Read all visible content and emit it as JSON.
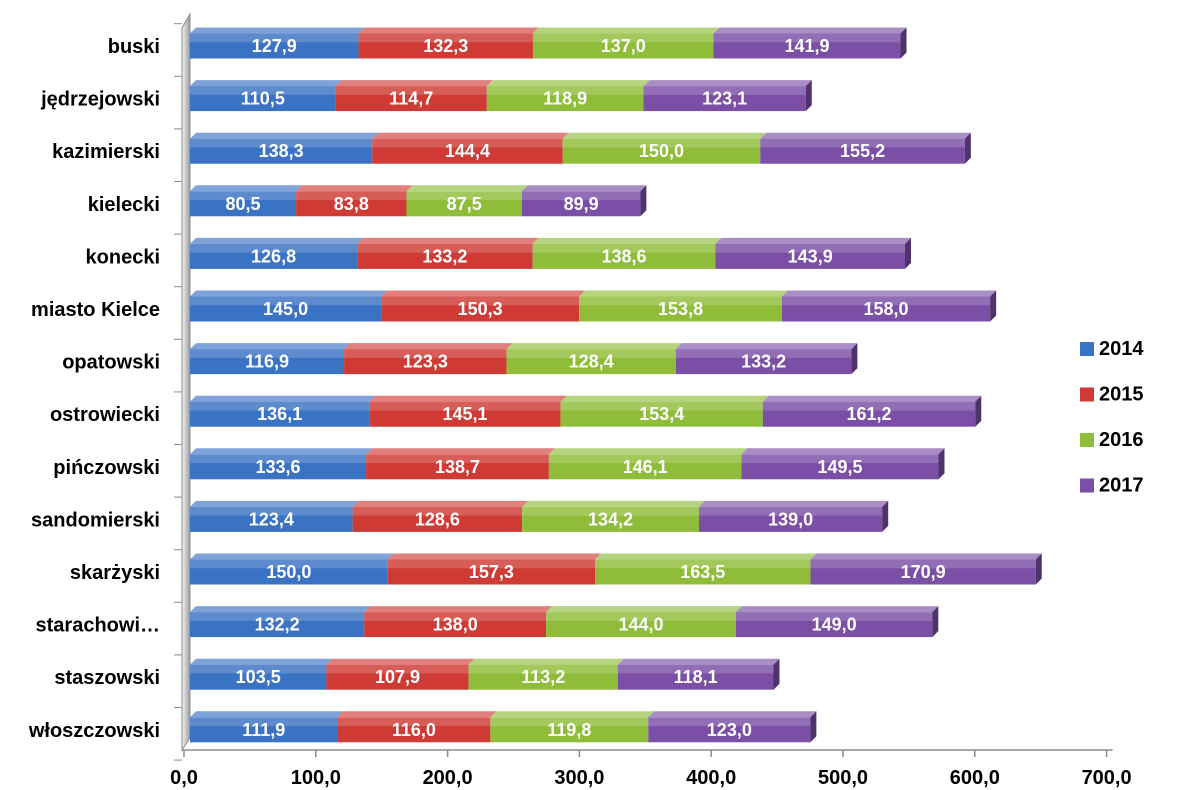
{
  "chart_data": {
    "type": "bar",
    "orientation": "horizontal",
    "stacked": true,
    "categories": [
      "buski",
      "jędrzejowski",
      "kazimierski",
      "kielecki",
      "konecki",
      "miasto Kielce",
      "opatowski",
      "ostrowiecki",
      "pińczowski",
      "sandomierski",
      "skarżyski",
      "starachowi…",
      "staszowski",
      "włoszczowski"
    ],
    "series": [
      {
        "name": "2014",
        "color": "#3a72c4",
        "values": [
          127.9,
          110.5,
          138.3,
          80.5,
          126.8,
          145.0,
          116.9,
          136.1,
          133.6,
          123.4,
          150.0,
          132.2,
          103.5,
          111.9
        ],
        "labels": [
          "127,9",
          "110,5",
          "138,3",
          "80,5",
          "126,8",
          "145,0",
          "116,9",
          "136,1",
          "133,6",
          "123,4",
          "150,0",
          "132,2",
          "103,5",
          "111,9"
        ]
      },
      {
        "name": "2015",
        "color": "#cf3a35",
        "values": [
          132.3,
          114.7,
          144.4,
          83.8,
          133.2,
          150.3,
          123.3,
          145.1,
          138.7,
          128.6,
          157.3,
          138.0,
          107.9,
          116.0
        ],
        "labels": [
          "132,3",
          "114,7",
          "144,4",
          "83,8",
          "133,2",
          "150,3",
          "123,3",
          "145,1",
          "138,7",
          "128,6",
          "157,3",
          "138,0",
          "107,9",
          "116,0"
        ]
      },
      {
        "name": "2016",
        "color": "#8fbd3a",
        "values": [
          137.0,
          118.9,
          150.0,
          87.5,
          138.6,
          153.8,
          128.4,
          153.4,
          146.1,
          134.2,
          163.5,
          144.0,
          113.2,
          119.8
        ],
        "labels": [
          "137,0",
          "118,9",
          "150,0",
          "87,5",
          "138,6",
          "153,8",
          "128,4",
          "153,4",
          "146,1",
          "134,2",
          "163,5",
          "144,0",
          "113,2",
          "119,8"
        ]
      },
      {
        "name": "2017",
        "color": "#7b4fa6",
        "values": [
          141.9,
          123.1,
          155.2,
          89.9,
          143.9,
          158.0,
          133.2,
          161.2,
          149.5,
          139.0,
          170.9,
          149.0,
          118.1,
          123.0
        ],
        "labels": [
          "141,9",
          "123,1",
          "155,2",
          "89,9",
          "143,9",
          "158,0",
          "133,2",
          "161,2",
          "149,5",
          "139,0",
          "170,9",
          "149,0",
          "118,1",
          "123,0"
        ]
      }
    ],
    "x_ticks": [
      "0,0",
      "100,0",
      "200,0",
      "300,0",
      "400,0",
      "500,0",
      "600,0",
      "700,0"
    ],
    "xlim": [
      0,
      700
    ],
    "legend": {
      "position": "right",
      "entries": [
        "2014",
        "2015",
        "2016",
        "2017"
      ]
    },
    "grid": false,
    "title": "",
    "xlabel": "",
    "ylabel": ""
  }
}
